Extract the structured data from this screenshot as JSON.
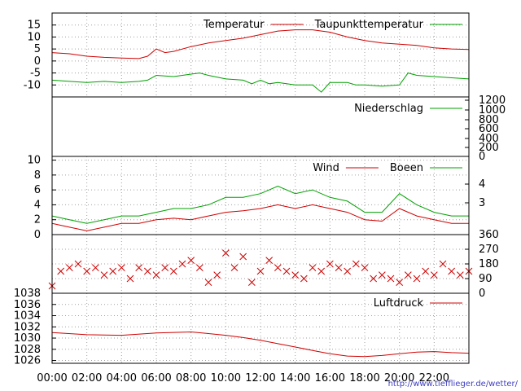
{
  "chart_data": {
    "type": "line",
    "x_ticks": [
      "00:00",
      "02:00",
      "04:00",
      "06:00",
      "08:00",
      "10:00",
      "12:00",
      "14:00",
      "16:00",
      "18:00",
      "20:00",
      "22:00"
    ],
    "footer_url": "http://www.tiefflieger.de/wetter/",
    "colors": {
      "red": "#d00000",
      "green": "#00a000",
      "grid": "#a0a0a0"
    },
    "panels": [
      {
        "id": "temperature",
        "ylim": [
          -15,
          20
        ],
        "left_ticks": [
          "15",
          "10",
          "5",
          "0",
          "-5",
          "-10"
        ],
        "right_ticks": [],
        "grid": true,
        "series": [
          {
            "name": "Temperatur",
            "color": "red",
            "x": [
              0,
              1,
              2,
              3,
              4,
              5,
              5.5,
              6,
              6.5,
              7,
              8,
              9,
              10,
              11,
              12,
              13,
              14,
              15,
              16,
              17,
              18,
              19,
              20,
              21,
              22,
              23,
              24
            ],
            "y": [
              3.5,
              3,
              2,
              1.5,
              1.2,
              1,
              2,
              5,
              3.5,
              4,
              6,
              7.5,
              8.5,
              9.5,
              11,
              12.5,
              13,
              13,
              12,
              10,
              8.5,
              7.5,
              7,
              6.5,
              5.5,
              5,
              4.8
            ]
          },
          {
            "name": "Taupunkttemperatur",
            "color": "green",
            "x": [
              0,
              1,
              2,
              3,
              4,
              5,
              5.5,
              6,
              7,
              8,
              8.5,
              9,
              10,
              11,
              11.5,
              12,
              12.5,
              13,
              14,
              15,
              15.5,
              16,
              17,
              17.5,
              18,
              19,
              20,
              20.5,
              21,
              22,
              23,
              24
            ],
            "y": [
              -8,
              -8.5,
              -9,
              -8.5,
              -9,
              -8.5,
              -8,
              -6,
              -6.5,
              -5.5,
              -5,
              -6,
              -7.5,
              -8,
              -9.5,
              -8,
              -9.5,
              -9,
              -10,
              -10,
              -13,
              -9,
              -9,
              -10,
              -10,
              -10.5,
              -10,
              -5,
              -6,
              -6.5,
              -7,
              -7.5
            ]
          }
        ]
      },
      {
        "id": "precipitation",
        "ylim": [
          0,
          1200
        ],
        "left_ticks": [],
        "right_ticks": [
          "1200",
          "1000",
          "800",
          "600",
          "400",
          "200",
          "0"
        ],
        "grid": false,
        "series": [
          {
            "name": "Niederschlag",
            "color": "green",
            "x": [
              0,
              24
            ],
            "y": [
              0,
              0
            ]
          }
        ]
      },
      {
        "id": "wind",
        "ylim": [
          0,
          10
        ],
        "left_ticks": [
          "10",
          "8",
          "6",
          "4",
          "2",
          "0"
        ],
        "right_ticks": [
          "4",
          "3"
        ],
        "grid": true,
        "series": [
          {
            "name": "Wind",
            "color": "red",
            "x": [
              0,
              1,
              2,
              3,
              4,
              5,
              6,
              7,
              8,
              9,
              10,
              11,
              12,
              13,
              14,
              15,
              16,
              17,
              18,
              19,
              20,
              21,
              22,
              23,
              24
            ],
            "y": [
              1.5,
              1,
              0.5,
              1,
              1.5,
              1.5,
              2,
              2.2,
              2,
              2.5,
              3,
              3.2,
              3.5,
              4,
              3.5,
              4,
              3.5,
              3,
              2,
              1.8,
              3.5,
              2.5,
              2,
              1.5,
              1.5
            ]
          },
          {
            "name": "Boeen",
            "color": "green",
            "x": [
              0,
              1,
              2,
              3,
              4,
              5,
              6,
              7,
              8,
              9,
              10,
              11,
              12,
              13,
              14,
              15,
              16,
              17,
              18,
              19,
              20,
              21,
              22,
              23,
              24
            ],
            "y": [
              2.5,
              2,
              1.5,
              2,
              2.5,
              2.5,
              3,
              3.5,
              3.5,
              4,
              5,
              5,
              5.5,
              6.5,
              5.5,
              6,
              5,
              4.5,
              3,
              3,
              5.5,
              4,
              3,
              2.5,
              2.5
            ]
          }
        ]
      },
      {
        "id": "direction",
        "ylim": [
          0,
          360
        ],
        "left_ticks": [],
        "right_ticks": [
          "360",
          "270",
          "180",
          "90",
          "0"
        ],
        "grid": true,
        "series": [
          {
            "name": "",
            "color": "red",
            "x": [
              0,
              0.5,
              1,
              1.5,
              2,
              2.5,
              3,
              3.5,
              4,
              4.5,
              5,
              5.5,
              6,
              6.5,
              7,
              7.5,
              8,
              8.5,
              9,
              9.5,
              10,
              10.5,
              11,
              11.5,
              12,
              12.5,
              13,
              13.5,
              14,
              14.5,
              15,
              15.5,
              16,
              16.5,
              17,
              17.5,
              18,
              18.5,
              19,
              19.5,
              20,
              20.5,
              21,
              21.5,
              22,
              22.5,
              23,
              23.5,
              24
            ],
            "y": [
              45,
              135,
              157,
              180,
              135,
              157,
              112,
              135,
              157,
              90,
              157,
              135,
              112,
              157,
              135,
              180,
              202,
              157,
              67,
              112,
              247,
              157,
              225,
              67,
              135,
              202,
              157,
              135,
              112,
              90,
              157,
              135,
              180,
              157,
              135,
              180,
              157,
              90,
              112,
              90,
              67,
              112,
              90,
              135,
              112,
              180,
              135,
              112,
              135
            ]
          }
        ]
      },
      {
        "id": "pressure",
        "ylim": [
          1025.5,
          1038
        ],
        "left_ticks": [
          "1038",
          "1036",
          "1034",
          "1032",
          "1030",
          "1028",
          "1026"
        ],
        "right_ticks": [],
        "grid": true,
        "series": [
          {
            "name": "Luftdruck",
            "color": "red",
            "x": [
              0,
              2,
              4,
              6,
              8,
              9,
              10,
              11,
              12,
              13,
              14,
              15,
              16,
              17,
              18,
              19,
              20,
              21,
              22,
              23,
              24
            ],
            "y": [
              1031,
              1030.6,
              1030.5,
              1030.9,
              1031.1,
              1030.8,
              1030.5,
              1030.1,
              1029.6,
              1029,
              1028.4,
              1027.8,
              1027.2,
              1026.8,
              1026.7,
              1026.9,
              1027.2,
              1027.5,
              1027.6,
              1027.4,
              1027.3
            ]
          }
        ]
      }
    ]
  }
}
